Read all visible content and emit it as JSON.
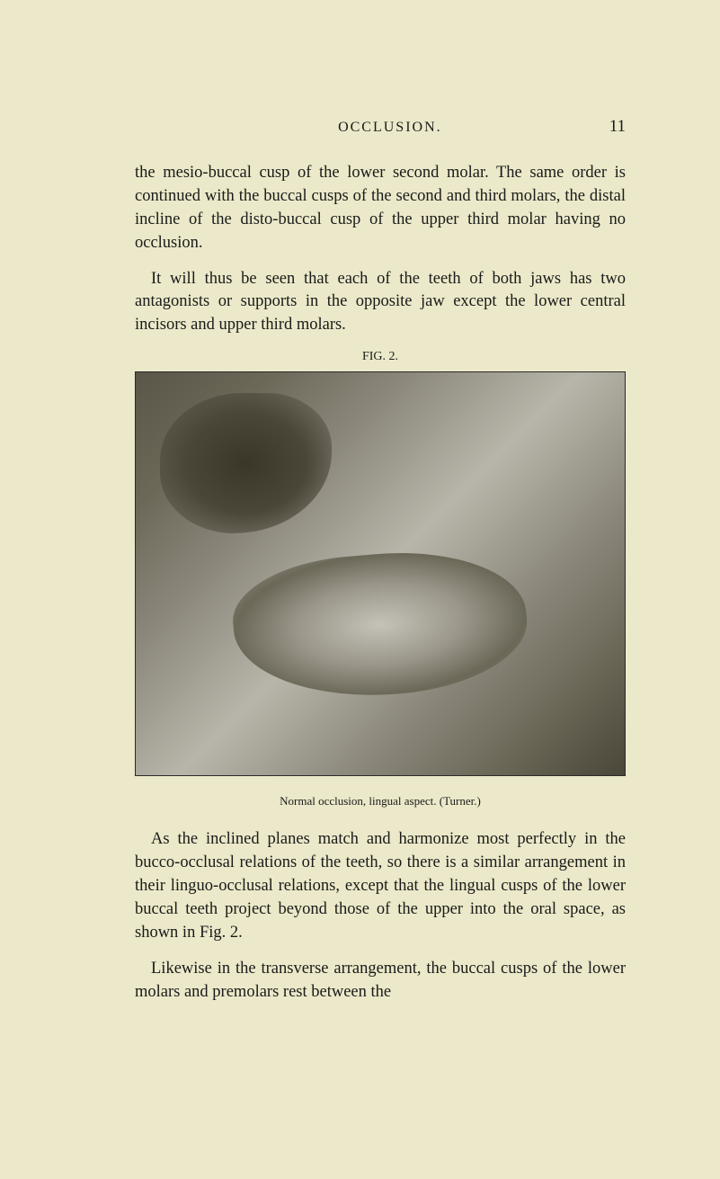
{
  "header": {
    "title": "OCCLUSION.",
    "page_number": "11"
  },
  "paragraphs": {
    "p1": "the mesio-buccal cusp of the lower second molar. The same order is continued with the buccal cusps of the second and third molars, the distal incline of the disto-buccal cusp of the upper third molar having no occlusion.",
    "p2": "It will thus be seen that each of the teeth of both jaws has two antagonists or supports in the opposite jaw except the lower central incisors and upper third molars.",
    "p3": "As the inclined planes match and harmonize most per­fectly in the bucco-occlusal relations of the teeth, so there is a similar arrangement in their linguo-occlusal relations, except that the lingual cusps of the lower buccal teeth project beyond those of the upper into the oral space, as shown in Fig. 2.",
    "p4": "Likewise in the transverse arrangement, the buccal cusps of the lower molars and premolars rest between the"
  },
  "figure": {
    "label": "FIG. 2.",
    "caption": "Normal occlusion, lingual aspect. (Turner.)"
  }
}
